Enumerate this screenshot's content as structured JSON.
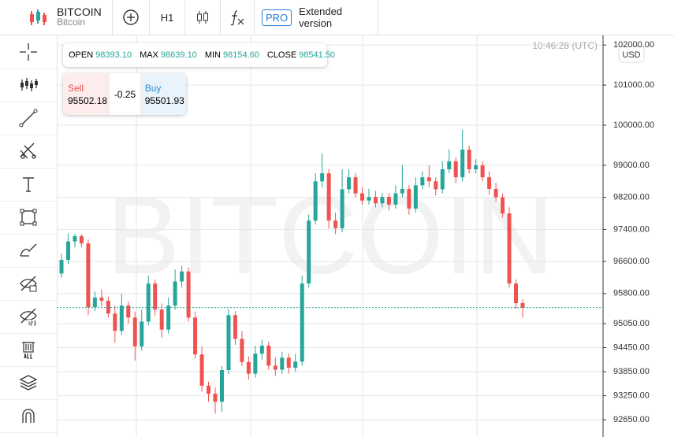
{
  "header": {
    "symbol": "BITCOIN",
    "name": "Bitcoin",
    "timeframe": "H1",
    "pro": "PRO",
    "extended": "Extended version"
  },
  "info": {
    "open_label": "OPEN",
    "open": "98393.10",
    "max_label": "MAX",
    "max": "98639.10",
    "min_label": "MIN",
    "min": "98154.60",
    "close_label": "CLOSE",
    "close": "98541.50"
  },
  "trade": {
    "sell_label": "Sell",
    "sell": "95502.18",
    "spread": "-0.25",
    "buy_label": "Buy",
    "buy": "95501.93"
  },
  "clock": "10:46:28 (UTC)",
  "currency": "USD",
  "watermark": "BITCOIN",
  "chart_data": {
    "type": "candlestick",
    "up_color": "#26a69a",
    "down_color": "#ef5350",
    "ylim": [
      92220,
      102240
    ],
    "yticks": [
      {
        "value": 102000,
        "label": "102000.00"
      },
      {
        "value": 101000,
        "label": "101000.00"
      },
      {
        "value": 100000,
        "label": "100000.00"
      },
      {
        "value": 99000,
        "label": "99000.00"
      },
      {
        "value": 98200,
        "label": "98200.00"
      },
      {
        "value": 97400,
        "label": "97400.00"
      },
      {
        "value": 96600,
        "label": "96600.00"
      },
      {
        "value": 95800,
        "label": "95800.00"
      },
      {
        "value": 95050,
        "label": "95050.00"
      },
      {
        "value": 94450,
        "label": "94450.00"
      },
      {
        "value": 93850,
        "label": "93850.00"
      },
      {
        "value": 93250,
        "label": "93250.00"
      },
      {
        "value": 92650,
        "label": "92650.00"
      }
    ],
    "grid": true,
    "open": [
      96300,
      96640,
      97100,
      97230,
      97050,
      95460,
      95700,
      95620,
      95300,
      94870,
      95500,
      95200,
      94480,
      95100,
      96050,
      95400,
      94900,
      95500,
      96100,
      96350,
      95200,
      94280,
      93500,
      93300,
      93100,
      93890,
      95260,
      94670,
      94090,
      93800,
      94300,
      94500,
      94000,
      93900,
      94200,
      93950,
      94100,
      96050,
      97620,
      98600,
      98800,
      97620,
      97430,
      98400,
      98700,
      98300,
      98120,
      98210,
      98050,
      98210,
      98020,
      98300,
      98410,
      97920,
      98500,
      98700,
      98600,
      98400,
      98900,
      99100,
      98700,
      99390,
      98900,
      99000,
      98700,
      98410,
      98200,
      97800,
      96050,
      95560
    ],
    "high": [
      96790,
      97300,
      97290,
      97280,
      97150,
      95850,
      95900,
      95720,
      95500,
      95800,
      95600,
      95350,
      95400,
      96250,
      96150,
      95550,
      95700,
      96400,
      96500,
      96450,
      95350,
      94480,
      93600,
      93450,
      93990,
      95410,
      95360,
      94870,
      94240,
      94500,
      94650,
      94600,
      94200,
      94350,
      94300,
      94300,
      96250,
      97770,
      98800,
      99300,
      98900,
      97820,
      98900,
      98900,
      98800,
      98450,
      98410,
      98360,
      98310,
      98310,
      98500,
      99010,
      98510,
      98700,
      98850,
      99000,
      98700,
      99100,
      99400,
      99200,
      99890,
      99490,
      99150,
      99100,
      98850,
      98560,
      98300,
      97950,
      96150,
      95660
    ],
    "low": [
      96200,
      96540,
      96950,
      96950,
      95260,
      95360,
      95470,
      95200,
      94570,
      94770,
      95050,
      94130,
      94380,
      95000,
      95250,
      94700,
      94800,
      95400,
      95950,
      95100,
      94180,
      93350,
      93100,
      92800,
      92850,
      93790,
      94520,
      93990,
      93650,
      93700,
      94150,
      93900,
      93750,
      93800,
      93800,
      93850,
      94000,
      95950,
      97520,
      98450,
      97420,
      97280,
      97330,
      98300,
      98200,
      98020,
      98020,
      97950,
      97950,
      97870,
      97920,
      98200,
      97770,
      97820,
      98400,
      98450,
      98250,
      98300,
      98800,
      98550,
      98600,
      98800,
      98800,
      98600,
      98260,
      98100,
      97700,
      95950,
      95410,
      95200
    ],
    "close": [
      96640,
      97100,
      97230,
      97050,
      95460,
      95700,
      95620,
      95300,
      94870,
      95500,
      95200,
      94480,
      95100,
      96050,
      95400,
      94900,
      95500,
      96100,
      96350,
      95200,
      94280,
      93500,
      93300,
      93100,
      93890,
      95260,
      94670,
      94090,
      93800,
      94300,
      94500,
      94000,
      93900,
      94200,
      93950,
      94100,
      96050,
      97620,
      98600,
      98800,
      97620,
      97430,
      98400,
      98700,
      98300,
      98120,
      98210,
      98050,
      98210,
      98020,
      98300,
      98410,
      97920,
      98500,
      98700,
      98600,
      98400,
      98900,
      99100,
      98700,
      99390,
      98900,
      99000,
      98700,
      98410,
      98200,
      97800,
      96050,
      95560,
      95450
    ]
  }
}
